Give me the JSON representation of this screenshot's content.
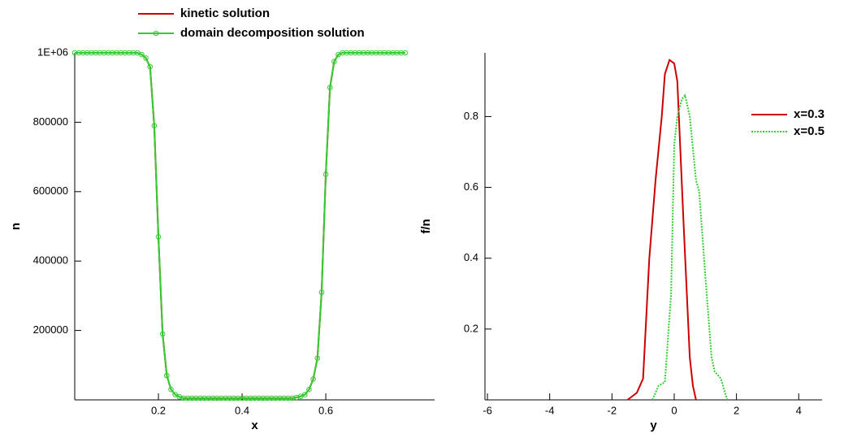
{
  "chart_data": [
    {
      "type": "line",
      "xlabel": "x",
      "ylabel": "n",
      "x": [
        0,
        0.01,
        0.02,
        0.03,
        0.04,
        0.05,
        0.06,
        0.07,
        0.08,
        0.09,
        0.1,
        0.11,
        0.12,
        0.13,
        0.14,
        0.15,
        0.16,
        0.17,
        0.18,
        0.19,
        0.2,
        0.21,
        0.22,
        0.23,
        0.24,
        0.25,
        0.26,
        0.27,
        0.28,
        0.29,
        0.3,
        0.31,
        0.32,
        0.33,
        0.34,
        0.35,
        0.36,
        0.37,
        0.38,
        0.39,
        0.4,
        0.41,
        0.42,
        0.43,
        0.44,
        0.45,
        0.46,
        0.47,
        0.48,
        0.49,
        0.5,
        0.51,
        0.52,
        0.53,
        0.54,
        0.55,
        0.56,
        0.57,
        0.58,
        0.59,
        0.6,
        0.61,
        0.62,
        0.63,
        0.64,
        0.65,
        0.66,
        0.67,
        0.68,
        0.69,
        0.7,
        0.71,
        0.72,
        0.73,
        0.74,
        0.75,
        0.76,
        0.77,
        0.78,
        0.79
      ],
      "series": [
        {
          "name": "kinetic solution",
          "color": "#cc0000",
          "values": [
            1000000,
            1000000,
            1000000,
            1000000,
            1000000,
            1000000,
            1000000,
            1000000,
            1000000,
            1000000,
            1000000,
            1000000,
            1000000,
            1000000,
            1000000,
            1000000,
            995000,
            985000,
            960000,
            790000,
            470000,
            190000,
            70000,
            30000,
            15000,
            9000,
            5000,
            5000,
            5000,
            5000,
            5000,
            5000,
            5000,
            5000,
            5000,
            5000,
            5000,
            5000,
            5000,
            5000,
            5000,
            5000,
            5000,
            5000,
            5000,
            5000,
            5000,
            5000,
            5000,
            5000,
            5000,
            5000,
            5000,
            7000,
            10000,
            15000,
            30000,
            60000,
            120000,
            310000,
            650000,
            900000,
            975000,
            995000,
            1000000,
            1000000,
            1000000,
            1000000,
            1000000,
            1000000,
            1000000,
            1000000,
            1000000,
            1000000,
            1000000,
            1000000,
            1000000,
            1000000,
            1000000,
            1000000
          ]
        },
        {
          "name": "domain decomposition solution",
          "color": "#33cc33",
          "marker": "circle",
          "values": [
            1000000,
            1000000,
            1000000,
            1000000,
            1000000,
            1000000,
            1000000,
            1000000,
            1000000,
            1000000,
            1000000,
            1000000,
            1000000,
            1000000,
            1000000,
            1000000,
            995000,
            985000,
            960000,
            790000,
            470000,
            190000,
            70000,
            30000,
            15000,
            9000,
            5000,
            5000,
            5000,
            5000,
            5000,
            5000,
            5000,
            5000,
            5000,
            5000,
            5000,
            5000,
            5000,
            5000,
            5000,
            5000,
            5000,
            5000,
            5000,
            5000,
            5000,
            5000,
            5000,
            5000,
            5000,
            5000,
            5000,
            7000,
            10000,
            15000,
            30000,
            60000,
            120000,
            310000,
            650000,
            900000,
            975000,
            995000,
            1000000,
            1000000,
            1000000,
            1000000,
            1000000,
            1000000,
            1000000,
            1000000,
            1000000,
            1000000,
            1000000,
            1000000,
            1000000,
            1000000,
            1000000,
            1000000
          ]
        }
      ],
      "xlim": [
        0,
        0.86
      ],
      "xticks": [
        0.2,
        0.4,
        0.6
      ],
      "ylim": [
        0,
        1000000
      ],
      "yticks": [
        {
          "value": 1000000,
          "label": "1E+06"
        },
        800000,
        600000,
        400000,
        200000
      ],
      "legend": "top"
    },
    {
      "type": "line",
      "xlabel": "y",
      "ylabel": "f/n",
      "series": [
        {
          "name": "x=0.3",
          "color": "#cc0000",
          "x": [
            -1.5,
            -1.2,
            -1.0,
            -0.8,
            -0.6,
            -0.4,
            -0.3,
            -0.15,
            0,
            0.1,
            0.3,
            0.5,
            0.6,
            0.7
          ],
          "values": [
            0,
            0.02,
            0.06,
            0.4,
            0.62,
            0.8,
            0.92,
            0.96,
            0.95,
            0.9,
            0.5,
            0.12,
            0.04,
            0
          ]
        },
        {
          "name": "x=0.5",
          "color": "#33cc33",
          "dash": "dotted",
          "x": [
            -0.7,
            -0.5,
            -0.3,
            -0.1,
            0,
            0.1,
            0.25,
            0.35,
            0.5,
            0.7,
            0.8,
            1.0,
            1.2,
            1.3,
            1.5,
            1.7
          ],
          "values": [
            0,
            0.04,
            0.05,
            0.3,
            0.72,
            0.8,
            0.85,
            0.86,
            0.8,
            0.62,
            0.59,
            0.35,
            0.12,
            0.08,
            0.06,
            0
          ]
        }
      ],
      "xlim": [
        -6.08,
        4.75
      ],
      "xticks": [
        -6,
        -4,
        -2,
        0,
        2,
        4
      ],
      "ylim": [
        0,
        0.98
      ],
      "yticks": [
        0.8,
        0.6,
        0.4,
        0.2
      ],
      "legend": "right"
    }
  ]
}
